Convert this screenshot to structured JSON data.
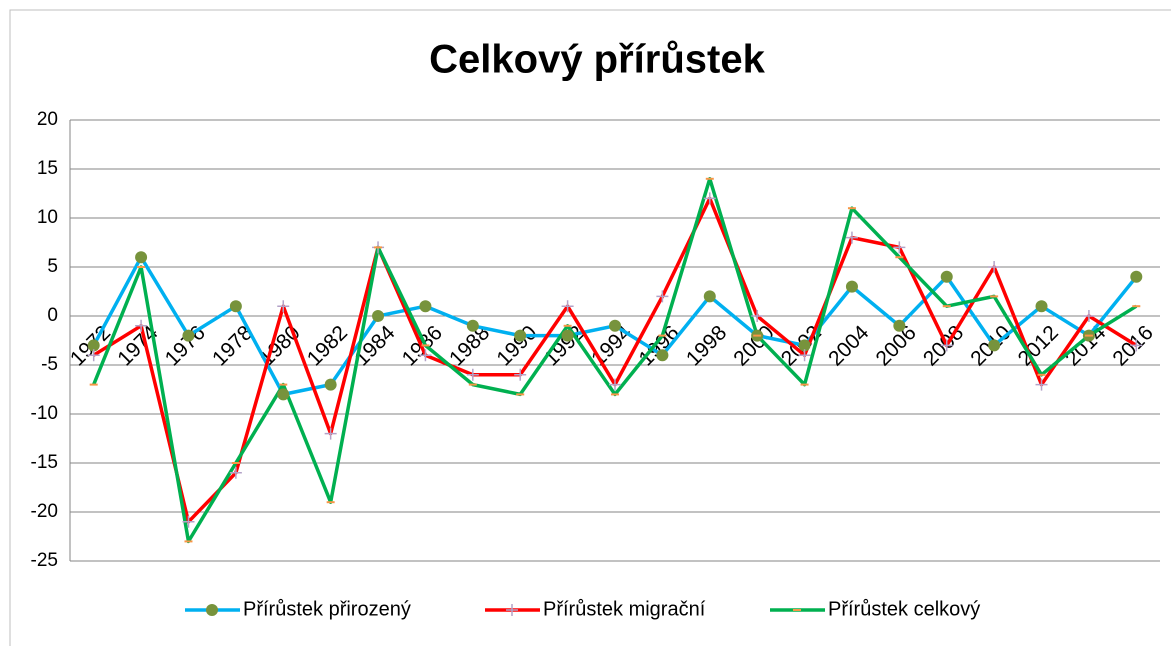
{
  "chart_data": {
    "type": "line",
    "title": "Celkový přírůstek",
    "categories": [
      "1972",
      "1974",
      "1976",
      "1978",
      "1980",
      "1982",
      "1984",
      "1986",
      "1988",
      "1990",
      "1992",
      "1994",
      "1996",
      "1998",
      "2000",
      "2002",
      "2004",
      "2006",
      "2008",
      "2010",
      "2012",
      "2014",
      "2016"
    ],
    "series": [
      {
        "name": "Přírůstek přirozený",
        "color": "#00b0f0",
        "marker_color": "#77933c",
        "values": [
          -3,
          6,
          -2,
          1,
          -8,
          -7,
          0,
          1,
          -1,
          -2,
          -2,
          -1,
          -4,
          2,
          -2,
          -3,
          3,
          -1,
          4,
          -3,
          1,
          -2,
          4
        ]
      },
      {
        "name": "Přírůstek migrační",
        "color": "#ff0000",
        "marker_color": "#b3a2c7",
        "values": [
          -4,
          -1,
          -21,
          -16,
          1,
          -12,
          7,
          -4,
          -6,
          -6,
          1,
          -7,
          2,
          12,
          0,
          -4,
          8,
          7,
          -3,
          5,
          -7,
          0,
          -3
        ]
      },
      {
        "name": "Přírůstek celkový",
        "color": "#00b050",
        "marker_color": "#f79646",
        "values": [
          -7,
          5,
          -23,
          -15,
          -7,
          -19,
          7,
          -3,
          -7,
          -8,
          -1,
          -8,
          -2,
          14,
          -2,
          -7,
          11,
          6,
          1,
          2,
          -6,
          -2,
          1
        ]
      }
    ],
    "ylim": [
      -25,
      20
    ],
    "yticks": [
      -25,
      -20,
      -15,
      -10,
      -5,
      0,
      5,
      10,
      15,
      20
    ],
    "grid": true,
    "legend": "bottom"
  }
}
